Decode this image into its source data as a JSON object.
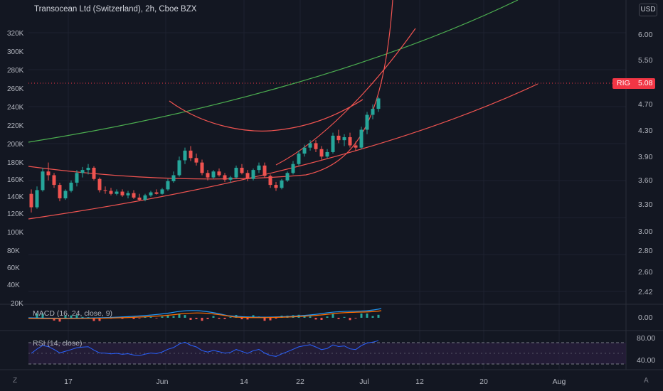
{
  "header": {
    "title": "Transocean Ltd (Switzerland), 2h, Cboe BZX",
    "currency": "USD"
  },
  "price_tag": {
    "symbol": "RIG",
    "price": "5.08"
  },
  "left_scale": [
    "320K",
    "300K",
    "280K",
    "260K",
    "240K",
    "220K",
    "200K",
    "180K",
    "160K",
    "140K",
    "120K",
    "100K",
    "80K",
    "60K",
    "40K",
    "20K"
  ],
  "right_scale": [
    "6.00",
    "5.50",
    "5.08",
    "4.70",
    "4.30",
    "3.90",
    "3.60",
    "3.30",
    "3.00",
    "2.80",
    "2.60",
    "2.42"
  ],
  "macd": {
    "label": "MACD (16, 24, close, 9)",
    "scale": [
      "0.00"
    ]
  },
  "rsi": {
    "label": "RSI (14, close)",
    "scale": [
      "80.00",
      "40.00"
    ]
  },
  "time_axis": [
    "17",
    "Jun",
    "14",
    "22",
    "Jul",
    "12",
    "20",
    "Aug"
  ],
  "corners": {
    "left": "Z",
    "right": "A"
  },
  "colors": {
    "background": "#131722",
    "up": "#26a69a",
    "down": "#ef5350",
    "accent_red": "#f23645",
    "green_line": "#4caf50",
    "rsi_line": "#2962ff",
    "macd_line": "#2196f3",
    "signal_line": "#ff6d00"
  },
  "chart_data": {
    "type": "candlestick",
    "symbol": "RIG",
    "y_ticks": [
      6.0,
      5.5,
      4.7,
      4.3,
      3.9,
      3.6,
      3.3,
      3.0,
      2.8,
      2.6,
      2.42
    ],
    "price_range": [
      2.3,
      6.4
    ],
    "last_price": 5.08,
    "x_ticks": [
      "17",
      "Jun",
      "14",
      "22",
      "Jul",
      "12",
      "20",
      "Aug"
    ],
    "candles": [
      [
        3.8,
        3.86,
        3.55,
        3.62
      ],
      [
        3.62,
        3.9,
        3.6,
        3.85
      ],
      [
        3.85,
        4.15,
        3.83,
        4.1
      ],
      [
        4.1,
        4.22,
        3.98,
        4.05
      ],
      [
        4.05,
        4.08,
        3.88,
        3.92
      ],
      [
        3.92,
        3.95,
        3.7,
        3.74
      ],
      [
        3.74,
        3.86,
        3.72,
        3.84
      ],
      [
        3.84,
        3.98,
        3.82,
        3.95
      ],
      [
        3.95,
        4.12,
        3.9,
        4.08
      ],
      [
        4.08,
        4.16,
        4.02,
        4.12
      ],
      [
        4.12,
        4.2,
        4.06,
        4.15
      ],
      [
        4.15,
        4.17,
        3.98,
        4.0
      ],
      [
        4.0,
        4.02,
        3.82,
        3.85
      ],
      [
        3.85,
        3.9,
        3.8,
        3.84
      ],
      [
        3.84,
        3.88,
        3.78,
        3.8
      ],
      [
        3.8,
        3.86,
        3.78,
        3.83
      ],
      [
        3.83,
        3.86,
        3.76,
        3.78
      ],
      [
        3.78,
        3.84,
        3.74,
        3.81
      ],
      [
        3.81,
        3.85,
        3.73,
        3.75
      ],
      [
        3.75,
        3.8,
        3.7,
        3.72
      ],
      [
        3.72,
        3.8,
        3.7,
        3.78
      ],
      [
        3.78,
        3.84,
        3.76,
        3.82
      ],
      [
        3.82,
        3.86,
        3.79,
        3.8
      ],
      [
        3.8,
        3.88,
        3.79,
        3.86
      ],
      [
        3.86,
        4.0,
        3.84,
        3.97
      ],
      [
        3.97,
        4.1,
        3.95,
        4.05
      ],
      [
        4.05,
        4.3,
        4.03,
        4.25
      ],
      [
        4.25,
        4.42,
        4.2,
        4.38
      ],
      [
        4.38,
        4.44,
        4.24,
        4.28
      ],
      [
        4.28,
        4.34,
        4.18,
        4.22
      ],
      [
        4.22,
        4.26,
        4.05,
        4.08
      ],
      [
        4.08,
        4.12,
        3.98,
        4.02
      ],
      [
        4.02,
        4.12,
        4.0,
        4.1
      ],
      [
        4.1,
        4.14,
        4.03,
        4.05
      ],
      [
        4.05,
        4.08,
        3.96,
        3.99
      ],
      [
        3.99,
        4.04,
        3.95,
        4.02
      ],
      [
        4.02,
        4.18,
        4.0,
        4.15
      ],
      [
        4.15,
        4.2,
        4.06,
        4.08
      ],
      [
        4.08,
        4.12,
        3.97,
        4.0
      ],
      [
        4.0,
        4.14,
        3.98,
        4.12
      ],
      [
        4.12,
        4.22,
        4.08,
        4.18
      ],
      [
        4.18,
        4.22,
        4.02,
        4.04
      ],
      [
        4.04,
        4.06,
        3.88,
        3.92
      ],
      [
        3.92,
        3.96,
        3.84,
        3.88
      ],
      [
        3.88,
        4.0,
        3.86,
        3.98
      ],
      [
        3.98,
        4.1,
        3.96,
        4.08
      ],
      [
        4.08,
        4.24,
        4.06,
        4.2
      ],
      [
        4.2,
        4.38,
        4.18,
        4.34
      ],
      [
        4.34,
        4.46,
        4.3,
        4.42
      ],
      [
        4.42,
        4.52,
        4.38,
        4.48
      ],
      [
        4.48,
        4.52,
        4.36,
        4.4
      ],
      [
        4.4,
        4.44,
        4.26,
        4.3
      ],
      [
        4.3,
        4.4,
        4.28,
        4.36
      ],
      [
        4.36,
        4.62,
        4.34,
        4.58
      ],
      [
        4.58,
        4.66,
        4.48,
        4.52
      ],
      [
        4.52,
        4.6,
        4.44,
        4.56
      ],
      [
        4.56,
        4.62,
        4.42,
        4.45
      ],
      [
        4.45,
        4.5,
        4.38,
        4.42
      ],
      [
        4.42,
        4.7,
        4.4,
        4.66
      ],
      [
        4.66,
        4.9,
        4.6,
        4.86
      ],
      [
        4.86,
        5.0,
        4.8,
        4.94
      ],
      [
        4.94,
        5.1,
        4.9,
        5.08
      ]
    ],
    "indicators": {
      "macd": {
        "name": "MACD (16, 24, close, 9)"
      },
      "rsi": {
        "name": "RSI (14, close)",
        "levels": [
          70,
          50,
          30
        ],
        "ticks": [
          80,
          40
        ]
      }
    }
  }
}
